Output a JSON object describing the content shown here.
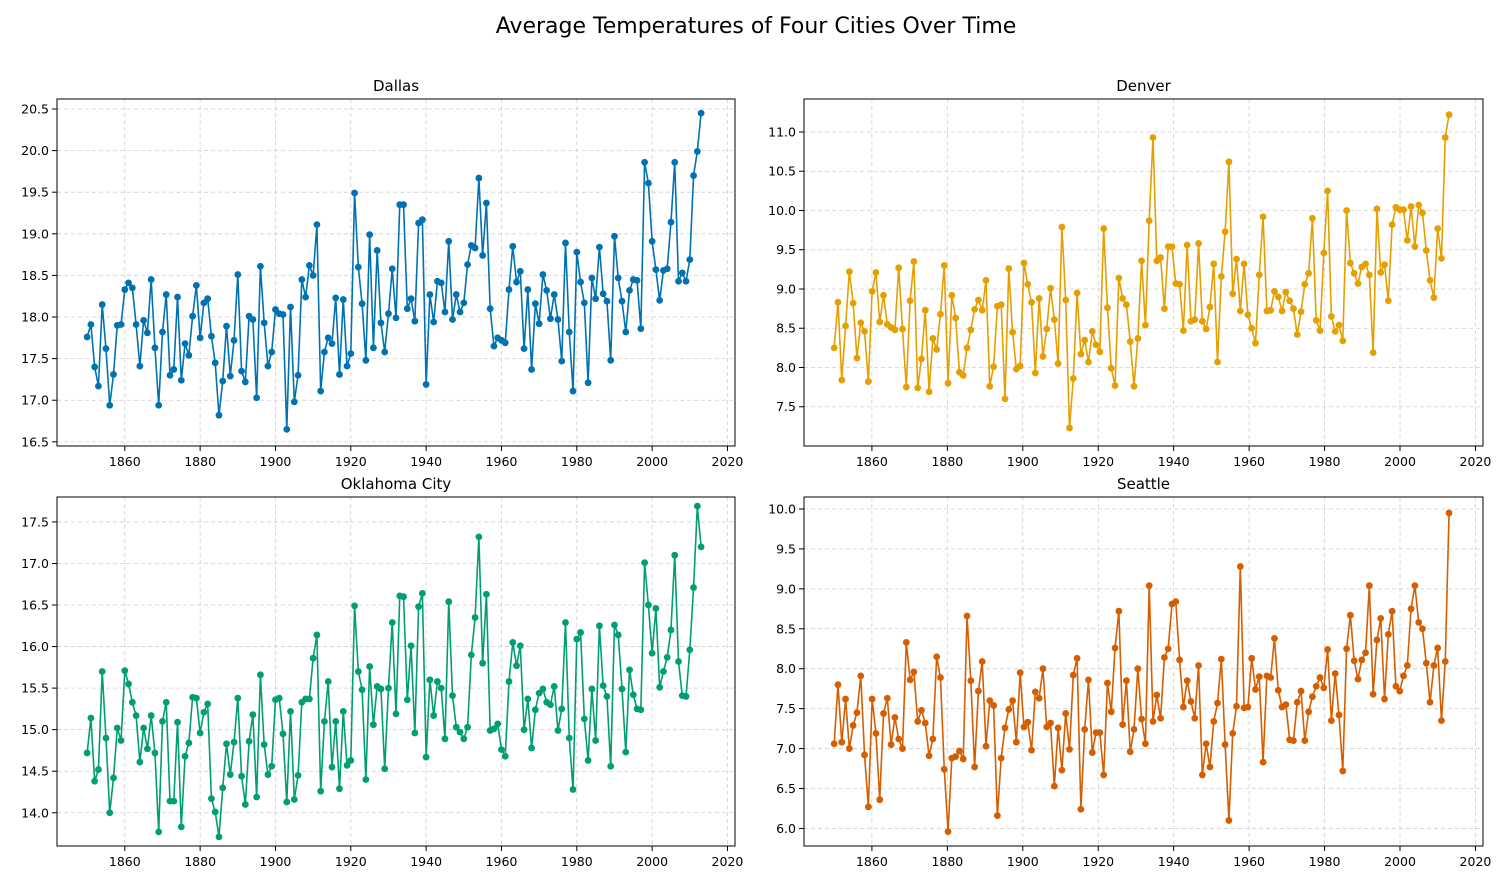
{
  "figure_title": "Average Temperatures of Four Cities Over Time",
  "chart_data": [
    {
      "type": "line",
      "title": "Dallas",
      "color": "#0072b2",
      "marker": "circle",
      "grid": true,
      "xlabel": "",
      "ylabel": "",
      "xlim": [
        1842,
        2022
      ],
      "ylim": [
        16.45,
        20.62
      ],
      "xticks": [
        1860,
        1880,
        1900,
        1920,
        1940,
        1960,
        1980,
        2000,
        2020
      ],
      "yticks": [
        16.5,
        17.0,
        17.5,
        18.0,
        18.5,
        19.0,
        19.5,
        20.0,
        20.5
      ],
      "x_start": 1850,
      "x_end": 2013,
      "values": [
        17.76,
        17.91,
        17.4,
        17.17,
        18.15,
        17.62,
        16.94,
        17.31,
        17.9,
        17.91,
        18.33,
        18.41,
        18.35,
        17.91,
        17.41,
        17.96,
        17.81,
        18.45,
        17.63,
        16.94,
        17.82,
        18.27,
        17.3,
        17.37,
        18.24,
        17.24,
        17.68,
        17.54,
        18.01,
        18.38,
        17.75,
        18.17,
        18.22,
        17.77,
        17.45,
        16.82,
        17.23,
        17.89,
        17.29,
        17.72,
        18.51,
        17.35,
        17.22,
        18.01,
        17.97,
        17.03,
        18.61,
        17.93,
        17.41,
        17.58,
        18.09,
        18.04,
        18.03,
        16.65,
        18.12,
        16.98,
        17.3,
        18.45,
        18.24,
        18.62,
        18.5,
        19.11,
        17.11,
        17.58,
        17.75,
        17.68,
        18.23,
        17.31,
        18.21,
        17.41,
        17.56,
        19.49,
        18.6,
        18.16,
        17.48,
        18.99,
        17.63,
        18.8,
        17.93,
        17.58,
        18.04,
        18.58,
        17.99,
        19.35,
        19.35,
        18.1,
        18.22,
        17.95,
        19.13,
        19.17,
        17.19,
        18.27,
        17.94,
        18.43,
        18.41,
        18.06,
        18.91,
        17.97,
        18.27,
        18.06,
        18.17,
        18.63,
        18.86,
        18.83,
        19.67,
        18.74,
        19.37,
        18.1,
        17.65,
        17.75,
        17.72,
        17.69,
        18.33,
        18.85,
        18.42,
        18.55,
        17.62,
        18.33,
        17.37,
        18.16,
        17.92,
        18.51,
        18.32,
        17.98,
        18.27,
        17.97,
        17.47,
        18.89,
        17.82,
        17.11,
        18.78,
        18.42,
        18.17,
        17.21,
        18.47,
        18.22,
        18.84,
        18.28,
        18.19,
        17.48,
        18.97,
        18.47,
        18.19,
        17.82,
        18.32,
        18.45,
        18.44,
        17.86,
        19.86,
        19.61,
        18.91,
        18.57,
        18.2,
        18.56,
        18.58,
        19.14,
        19.86,
        18.43,
        18.53,
        18.43,
        18.69,
        19.7,
        19.99,
        20.45
      ]
    },
    {
      "type": "line",
      "title": "Denver",
      "color": "#e69f00",
      "marker": "circle",
      "grid": true,
      "xlabel": "",
      "ylabel": "",
      "xlim": [
        1842,
        2022
      ],
      "ylim": [
        7.0,
        11.42
      ],
      "xticks": [
        1860,
        1880,
        1900,
        1920,
        1940,
        1960,
        1980,
        2000,
        2020
      ],
      "yticks": [
        7.5,
        8.0,
        8.5,
        9.0,
        9.5,
        10.0,
        10.5,
        11.0
      ],
      "x_start": 1850,
      "x_end": 2013,
      "values": [
        8.25,
        8.83,
        7.84,
        8.53,
        9.22,
        8.82,
        8.12,
        8.57,
        8.46,
        7.82,
        8.97,
        9.21,
        8.58,
        8.92,
        8.55,
        8.51,
        8.48,
        9.27,
        8.49,
        7.75,
        8.85,
        9.35,
        7.74,
        8.11,
        8.73,
        7.69,
        8.37,
        8.23,
        8.68,
        9.3,
        7.8,
        8.92,
        8.63,
        7.94,
        7.9,
        8.25,
        8.48,
        8.74,
        8.86,
        8.73,
        9.11,
        7.76,
        8.01,
        8.78,
        8.8,
        7.6,
        9.26,
        8.45,
        7.98,
        8.02,
        9.33,
        9.06,
        8.83,
        7.93,
        8.88,
        8.14,
        8.49,
        9.01,
        8.61,
        8.05,
        9.79,
        8.86,
        7.23,
        7.86,
        8.95,
        8.17,
        8.35,
        8.07,
        8.46,
        8.29,
        8.2,
        9.77,
        8.76,
        7.99,
        7.77,
        9.14,
        8.88,
        8.8,
        8.33,
        7.76,
        8.37,
        9.36,
        8.54,
        9.87,
        10.93,
        9.36,
        9.4,
        8.75,
        9.54,
        9.54,
        9.07,
        9.06,
        8.47,
        9.56,
        8.59,
        8.61,
        9.58,
        8.59,
        8.49,
        8.77,
        9.32,
        8.07,
        9.16,
        9.73,
        10.62,
        8.94,
        9.38,
        8.72,
        9.32,
        8.67,
        8.5,
        8.31,
        9.18,
        9.92,
        8.72,
        8.73,
        8.97,
        8.9,
        8.72,
        8.96,
        8.85,
        8.75,
        8.42,
        8.71,
        9.06,
        9.2,
        9.9,
        8.6,
        8.47,
        9.46,
        10.25,
        8.65,
        8.46,
        8.54,
        8.34,
        10.0,
        9.33,
        9.2,
        9.07,
        9.28,
        9.32,
        9.18,
        8.19,
        10.02,
        9.21,
        9.31,
        8.85,
        9.82,
        10.04,
        10.01,
        10.01,
        9.62,
        10.05,
        9.54,
        10.07,
        9.97,
        9.49,
        9.11,
        8.89,
        9.77,
        9.39,
        10.93,
        11.22
      ]
    },
    {
      "type": "line",
      "title": "Oklahoma City",
      "color": "#009e73",
      "marker": "circle",
      "grid": true,
      "xlabel": "",
      "ylabel": "",
      "xlim": [
        1842,
        2022
      ],
      "ylim": [
        13.6,
        17.8
      ],
      "xticks": [
        1860,
        1880,
        1900,
        1920,
        1940,
        1960,
        1980,
        2000,
        2020
      ],
      "yticks": [
        14.0,
        14.5,
        15.0,
        15.5,
        16.0,
        16.5,
        17.0,
        17.5
      ],
      "x_start": 1850,
      "x_end": 2013,
      "values": [
        14.72,
        15.14,
        14.38,
        14.52,
        15.7,
        14.9,
        14.0,
        14.42,
        15.02,
        14.87,
        15.71,
        15.55,
        15.33,
        15.17,
        14.61,
        15.02,
        14.77,
        15.17,
        14.72,
        13.77,
        15.1,
        15.33,
        14.14,
        14.14,
        15.09,
        13.83,
        14.68,
        14.84,
        15.39,
        15.38,
        14.96,
        15.21,
        15.31,
        14.17,
        14.01,
        13.71,
        14.3,
        14.83,
        14.46,
        14.85,
        15.38,
        14.44,
        14.1,
        14.86,
        15.18,
        14.19,
        15.66,
        14.82,
        14.46,
        14.56,
        15.36,
        15.38,
        14.95,
        14.13,
        15.22,
        14.16,
        14.45,
        15.33,
        15.37,
        15.37,
        15.86,
        16.14,
        14.26,
        15.1,
        15.58,
        14.55,
        15.1,
        14.29,
        15.22,
        14.57,
        14.63,
        16.49,
        15.7,
        15.48,
        14.4,
        15.76,
        15.06,
        15.52,
        15.49,
        14.53,
        15.5,
        16.29,
        15.19,
        16.61,
        16.6,
        15.36,
        16.01,
        14.96,
        16.48,
        16.64,
        14.67,
        15.6,
        15.17,
        15.58,
        15.5,
        14.89,
        16.54,
        15.41,
        15.03,
        14.97,
        14.89,
        15.03,
        15.9,
        16.35,
        17.32,
        15.8,
        16.63,
        14.99,
        15.01,
        15.07,
        14.76,
        14.68,
        15.58,
        16.05,
        15.77,
        16.01,
        15.0,
        15.37,
        14.78,
        15.24,
        15.44,
        15.49,
        15.33,
        15.3,
        15.52,
        14.99,
        15.25,
        16.29,
        14.9,
        14.28,
        16.09,
        16.17,
        15.13,
        14.63,
        15.49,
        14.87,
        16.25,
        15.53,
        15.4,
        14.56,
        16.26,
        16.14,
        15.49,
        14.73,
        15.72,
        15.42,
        15.25,
        15.24,
        17.01,
        16.5,
        15.92,
        16.46,
        15.51,
        15.7,
        15.87,
        16.2,
        17.1,
        15.82,
        15.41,
        15.4,
        15.96,
        16.71,
        17.69,
        17.2
      ]
    },
    {
      "type": "line",
      "title": "Seattle",
      "color": "#d55e00",
      "marker": "circle",
      "grid": true,
      "xlabel": "",
      "ylabel": "",
      "xlim": [
        1842,
        2022
      ],
      "ylim": [
        5.78,
        10.15
      ],
      "xticks": [
        1860,
        1880,
        1900,
        1920,
        1940,
        1960,
        1980,
        2000,
        2020
      ],
      "yticks": [
        6.0,
        6.5,
        7.0,
        7.5,
        8.0,
        8.5,
        9.0,
        9.5,
        10.0
      ],
      "x_start": 1850,
      "x_end": 2013,
      "values": [
        7.06,
        7.8,
        7.08,
        7.62,
        7.0,
        7.29,
        7.45,
        7.91,
        6.92,
        6.27,
        7.62,
        7.19,
        6.36,
        7.44,
        7.63,
        7.05,
        7.39,
        7.12,
        7.0,
        8.33,
        7.86,
        7.96,
        7.34,
        7.48,
        7.32,
        6.91,
        7.12,
        8.15,
        7.89,
        6.74,
        5.96,
        6.88,
        6.9,
        6.97,
        6.87,
        8.66,
        7.85,
        6.77,
        7.72,
        8.09,
        7.03,
        7.6,
        7.54,
        6.16,
        6.88,
        7.26,
        7.49,
        7.6,
        7.08,
        7.95,
        7.27,
        7.33,
        6.98,
        7.71,
        7.63,
        8.0,
        7.27,
        7.32,
        6.53,
        7.26,
        6.73,
        7.44,
        6.99,
        7.92,
        8.13,
        6.24,
        7.24,
        7.86,
        6.95,
        7.2,
        7.2,
        6.67,
        7.82,
        7.46,
        8.26,
        8.72,
        7.3,
        7.85,
        6.96,
        7.24,
        8.0,
        7.37,
        7.06,
        9.04,
        7.34,
        7.67,
        7.38,
        8.14,
        8.25,
        8.81,
        8.84,
        8.11,
        7.52,
        7.85,
        7.59,
        7.38,
        8.04,
        6.67,
        7.06,
        6.77,
        7.34,
        7.57,
        8.12,
        7.05,
        6.1,
        7.19,
        7.53,
        9.28,
        7.51,
        7.52,
        8.13,
        7.74,
        7.9,
        6.83,
        7.91,
        7.89,
        8.38,
        7.73,
        7.52,
        7.55,
        7.11,
        7.1,
        7.58,
        7.72,
        7.1,
        7.46,
        7.65,
        7.78,
        7.89,
        7.76,
        8.24,
        7.35,
        7.94,
        7.42,
        6.72,
        8.25,
        8.67,
        8.1,
        7.87,
        8.11,
        8.2,
        9.04,
        7.68,
        8.36,
        8.63,
        7.62,
        8.43,
        8.72,
        7.78,
        7.72,
        7.91,
        8.04,
        8.75,
        9.04,
        8.58,
        8.5,
        8.07,
        7.58,
        8.04,
        8.26,
        7.35,
        8.09,
        9.95
      ]
    }
  ]
}
